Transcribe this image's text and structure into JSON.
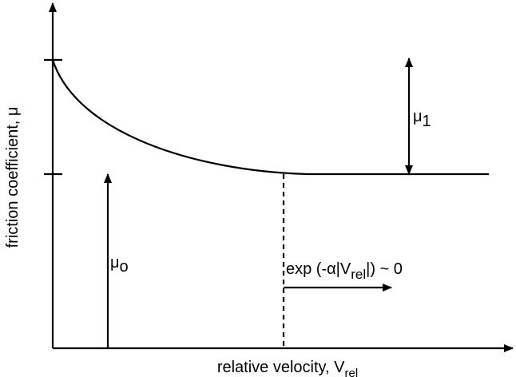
{
  "y_axis_label": "friction coefficient, μ",
  "x_axis_label": {
    "text": "relative velocity, V",
    "subscript": "rel"
  },
  "annotations": {
    "mu_1": {
      "symbol": "μ",
      "subscript": "1"
    },
    "mu_0": {
      "symbol": "μ",
      "subscript": "o"
    },
    "exp_term": {
      "before": "exp (-α|V",
      "subscript": "rel",
      "after": "|) ~ 0"
    }
  }
}
